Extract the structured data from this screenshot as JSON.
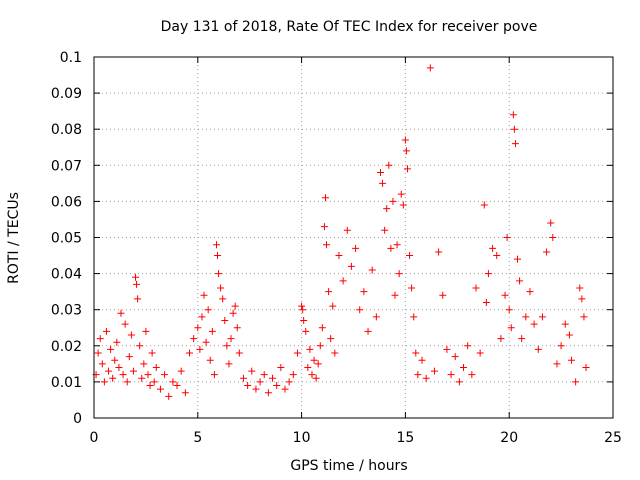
{
  "chart_data": {
    "type": "scatter",
    "title": "Day 131 of 2018, Rate Of TEC Index for receiver pove",
    "xlabel": "GPS time / hours",
    "ylabel": "ROTI / TECUs",
    "xlim": [
      0,
      25
    ],
    "ylim": [
      0,
      0.1
    ],
    "xticks": [
      "0",
      "5",
      "10",
      "15",
      "20",
      "25"
    ],
    "yticks": [
      "0",
      "0.01",
      "0.02",
      "0.03",
      "0.04",
      "0.05",
      "0.06",
      "0.07",
      "0.08",
      "0.09",
      "0.1"
    ],
    "grid": true,
    "marker": "+",
    "color": "#ff0000",
    "series": [
      {
        "points": [
          [
            0.1,
            0.012
          ],
          [
            0.2,
            0.018
          ],
          [
            0.3,
            0.022
          ],
          [
            0.4,
            0.015
          ],
          [
            0.5,
            0.01
          ],
          [
            0.6,
            0.024
          ],
          [
            0.7,
            0.013
          ],
          [
            0.8,
            0.019
          ],
          [
            0.9,
            0.011
          ],
          [
            1.0,
            0.016
          ],
          [
            1.1,
            0.021
          ],
          [
            1.2,
            0.014
          ],
          [
            1.3,
            0.029
          ],
          [
            1.4,
            0.012
          ],
          [
            1.5,
            0.026
          ],
          [
            1.6,
            0.01
          ],
          [
            1.7,
            0.017
          ],
          [
            1.8,
            0.023
          ],
          [
            1.9,
            0.013
          ],
          [
            2.0,
            0.039
          ],
          [
            2.05,
            0.037
          ],
          [
            2.1,
            0.033
          ],
          [
            2.2,
            0.02
          ],
          [
            2.3,
            0.011
          ],
          [
            2.4,
            0.015
          ],
          [
            2.5,
            0.024
          ],
          [
            2.6,
            0.012
          ],
          [
            2.7,
            0.009
          ],
          [
            2.8,
            0.018
          ],
          [
            2.9,
            0.01
          ],
          [
            3.0,
            0.014
          ],
          [
            3.2,
            0.008
          ],
          [
            3.4,
            0.012
          ],
          [
            3.6,
            0.006
          ],
          [
            3.8,
            0.01
          ],
          [
            4.0,
            0.009
          ],
          [
            4.2,
            0.013
          ],
          [
            4.4,
            0.007
          ],
          [
            4.6,
            0.018
          ],
          [
            4.8,
            0.022
          ],
          [
            5.0,
            0.025
          ],
          [
            5.1,
            0.019
          ],
          [
            5.2,
            0.028
          ],
          [
            5.3,
            0.034
          ],
          [
            5.4,
            0.021
          ],
          [
            5.5,
            0.03
          ],
          [
            5.6,
            0.016
          ],
          [
            5.7,
            0.024
          ],
          [
            5.8,
            0.012
          ],
          [
            5.9,
            0.048
          ],
          [
            5.95,
            0.045
          ],
          [
            6.0,
            0.04
          ],
          [
            6.1,
            0.036
          ],
          [
            6.2,
            0.033
          ],
          [
            6.3,
            0.027
          ],
          [
            6.4,
            0.02
          ],
          [
            6.5,
            0.015
          ],
          [
            6.6,
            0.022
          ],
          [
            6.7,
            0.029
          ],
          [
            6.8,
            0.031
          ],
          [
            6.9,
            0.025
          ],
          [
            7.0,
            0.018
          ],
          [
            7.2,
            0.011
          ],
          [
            7.4,
            0.009
          ],
          [
            7.6,
            0.013
          ],
          [
            7.8,
            0.008
          ],
          [
            8.0,
            0.01
          ],
          [
            8.2,
            0.012
          ],
          [
            8.4,
            0.007
          ],
          [
            8.6,
            0.011
          ],
          [
            8.8,
            0.009
          ],
          [
            9.0,
            0.014
          ],
          [
            9.2,
            0.008
          ],
          [
            9.4,
            0.01
          ],
          [
            9.6,
            0.012
          ],
          [
            9.8,
            0.018
          ],
          [
            10.0,
            0.031
          ],
          [
            10.05,
            0.03
          ],
          [
            10.1,
            0.027
          ],
          [
            10.2,
            0.024
          ],
          [
            10.3,
            0.014
          ],
          [
            10.4,
            0.019
          ],
          [
            10.5,
            0.012
          ],
          [
            10.6,
            0.016
          ],
          [
            10.7,
            0.011
          ],
          [
            10.8,
            0.015
          ],
          [
            10.9,
            0.02
          ],
          [
            11.0,
            0.025
          ],
          [
            11.1,
            0.053
          ],
          [
            11.15,
            0.061
          ],
          [
            11.2,
            0.048
          ],
          [
            11.3,
            0.035
          ],
          [
            11.4,
            0.022
          ],
          [
            11.5,
            0.031
          ],
          [
            11.6,
            0.018
          ],
          [
            11.8,
            0.045
          ],
          [
            12.0,
            0.038
          ],
          [
            12.2,
            0.052
          ],
          [
            12.4,
            0.042
          ],
          [
            12.6,
            0.047
          ],
          [
            12.8,
            0.03
          ],
          [
            13.0,
            0.035
          ],
          [
            13.2,
            0.024
          ],
          [
            13.4,
            0.041
          ],
          [
            13.6,
            0.028
          ],
          [
            13.8,
            0.068
          ],
          [
            13.9,
            0.065
          ],
          [
            14.0,
            0.052
          ],
          [
            14.1,
            0.058
          ],
          [
            14.2,
            0.07
          ],
          [
            14.3,
            0.047
          ],
          [
            14.4,
            0.06
          ],
          [
            14.5,
            0.034
          ],
          [
            14.6,
            0.048
          ],
          [
            14.7,
            0.04
          ],
          [
            14.8,
            0.062
          ],
          [
            14.9,
            0.059
          ],
          [
            15.0,
            0.077
          ],
          [
            15.05,
            0.074
          ],
          [
            15.1,
            0.069
          ],
          [
            15.2,
            0.045
          ],
          [
            15.3,
            0.036
          ],
          [
            15.4,
            0.028
          ],
          [
            15.5,
            0.018
          ],
          [
            15.6,
            0.012
          ],
          [
            15.8,
            0.016
          ],
          [
            16.0,
            0.011
          ],
          [
            16.2,
            0.097
          ],
          [
            16.4,
            0.013
          ],
          [
            16.6,
            0.046
          ],
          [
            16.8,
            0.034
          ],
          [
            17.0,
            0.019
          ],
          [
            17.2,
            0.012
          ],
          [
            17.4,
            0.017
          ],
          [
            17.6,
            0.01
          ],
          [
            17.8,
            0.014
          ],
          [
            18.0,
            0.02
          ],
          [
            18.2,
            0.012
          ],
          [
            18.4,
            0.036
          ],
          [
            18.6,
            0.018
          ],
          [
            18.8,
            0.059
          ],
          [
            18.9,
            0.032
          ],
          [
            19.0,
            0.04
          ],
          [
            19.2,
            0.047
          ],
          [
            19.4,
            0.045
          ],
          [
            19.6,
            0.022
          ],
          [
            19.8,
            0.034
          ],
          [
            19.9,
            0.05
          ],
          [
            20.0,
            0.03
          ],
          [
            20.1,
            0.025
          ],
          [
            20.2,
            0.084
          ],
          [
            20.25,
            0.08
          ],
          [
            20.3,
            0.076
          ],
          [
            20.4,
            0.044
          ],
          [
            20.5,
            0.038
          ],
          [
            20.6,
            0.022
          ],
          [
            20.8,
            0.028
          ],
          [
            21.0,
            0.035
          ],
          [
            21.2,
            0.026
          ],
          [
            21.4,
            0.019
          ],
          [
            21.6,
            0.028
          ],
          [
            21.8,
            0.046
          ],
          [
            22.0,
            0.054
          ],
          [
            22.1,
            0.05
          ],
          [
            22.3,
            0.015
          ],
          [
            22.5,
            0.02
          ],
          [
            22.7,
            0.026
          ],
          [
            22.9,
            0.023
          ],
          [
            23.0,
            0.016
          ],
          [
            23.2,
            0.01
          ],
          [
            23.4,
            0.036
          ],
          [
            23.5,
            0.033
          ],
          [
            23.6,
            0.028
          ],
          [
            23.7,
            0.014
          ]
        ]
      }
    ]
  }
}
